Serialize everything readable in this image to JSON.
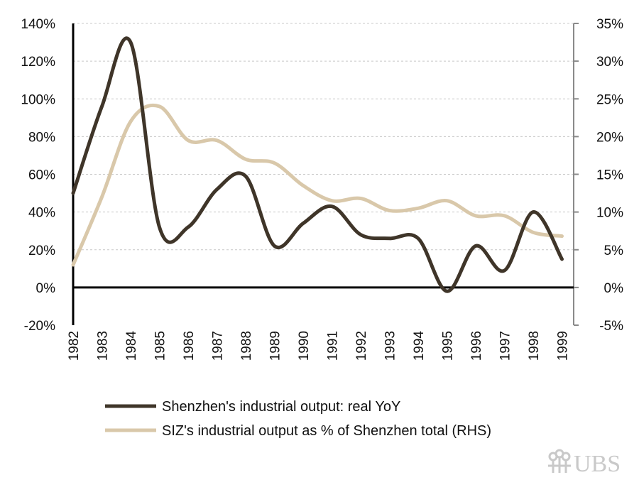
{
  "chart_data": {
    "type": "line",
    "x": [
      "1982",
      "1983",
      "1984",
      "1985",
      "1986",
      "1987",
      "1988",
      "1989",
      "1990",
      "1991",
      "1992",
      "1993",
      "1994",
      "1995",
      "1996",
      "1997",
      "1998",
      "1999"
    ],
    "series": [
      {
        "name": "Shenzhen's industrial output: real YoY",
        "axis": "left",
        "color": "#3f3529",
        "values": [
          50,
          96,
          130,
          32,
          32,
          52,
          59,
          22,
          34,
          43,
          28,
          26,
          26,
          -2,
          22,
          9,
          40,
          15
        ]
      },
      {
        "name": "SIZ's industrial output as % of Shenzhen total (RHS)",
        "axis": "right",
        "color": "#d9c8aa",
        "values": [
          3,
          12,
          22,
          24,
          19.5,
          19.5,
          17,
          16.5,
          13.5,
          11.5,
          11.8,
          10.2,
          10.5,
          11.5,
          9.5,
          9.5,
          7.3,
          6.8
        ]
      }
    ],
    "y_left": {
      "ticks": [
        "140%",
        "120%",
        "100%",
        "80%",
        "60%",
        "40%",
        "20%",
        "0%",
        "-20%"
      ],
      "range": [
        -20,
        140
      ]
    },
    "y_right": {
      "ticks": [
        "35%",
        "30%",
        "25%",
        "20%",
        "15%",
        "10%",
        "5%",
        "0%",
        "-5%"
      ],
      "range": [
        -5,
        35
      ]
    },
    "grid": true,
    "legend_position": "bottom"
  },
  "legend": [
    {
      "label": "Shenzhen's industrial output: real YoY",
      "color": "#3f3529"
    },
    {
      "label": "SIZ's industrial output as % of Shenzhen total (RHS)",
      "color": "#d9c8aa"
    }
  ],
  "logo": {
    "text": "UBS",
    "color": "#c9c9c9"
  }
}
